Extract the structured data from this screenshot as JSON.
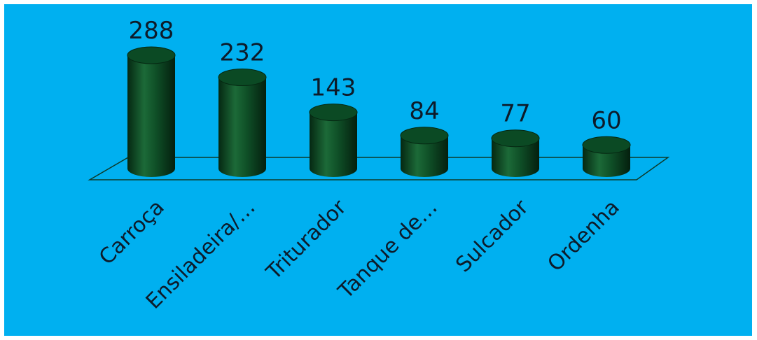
{
  "chart_data": {
    "type": "bar",
    "style": "3d-cylinder",
    "categories": [
      "Carroça",
      "Ensiladeira/…",
      "Triturador",
      "Tanque de…",
      "Sulcador",
      "Ordenha"
    ],
    "values": [
      288,
      232,
      143,
      84,
      77,
      60
    ],
    "data_labels": [
      "288",
      "232",
      "143",
      "84",
      "77",
      "60"
    ],
    "ylim": [
      0,
      300
    ],
    "grid": false,
    "legend": "none",
    "colors": {
      "background": "#00b0f0",
      "bar": "#0b4a24",
      "bar_dark": "#052812",
      "bar_light": "#1c6a38",
      "floor_stroke": "#0d3b2a",
      "text": "#0d1b2a"
    }
  }
}
